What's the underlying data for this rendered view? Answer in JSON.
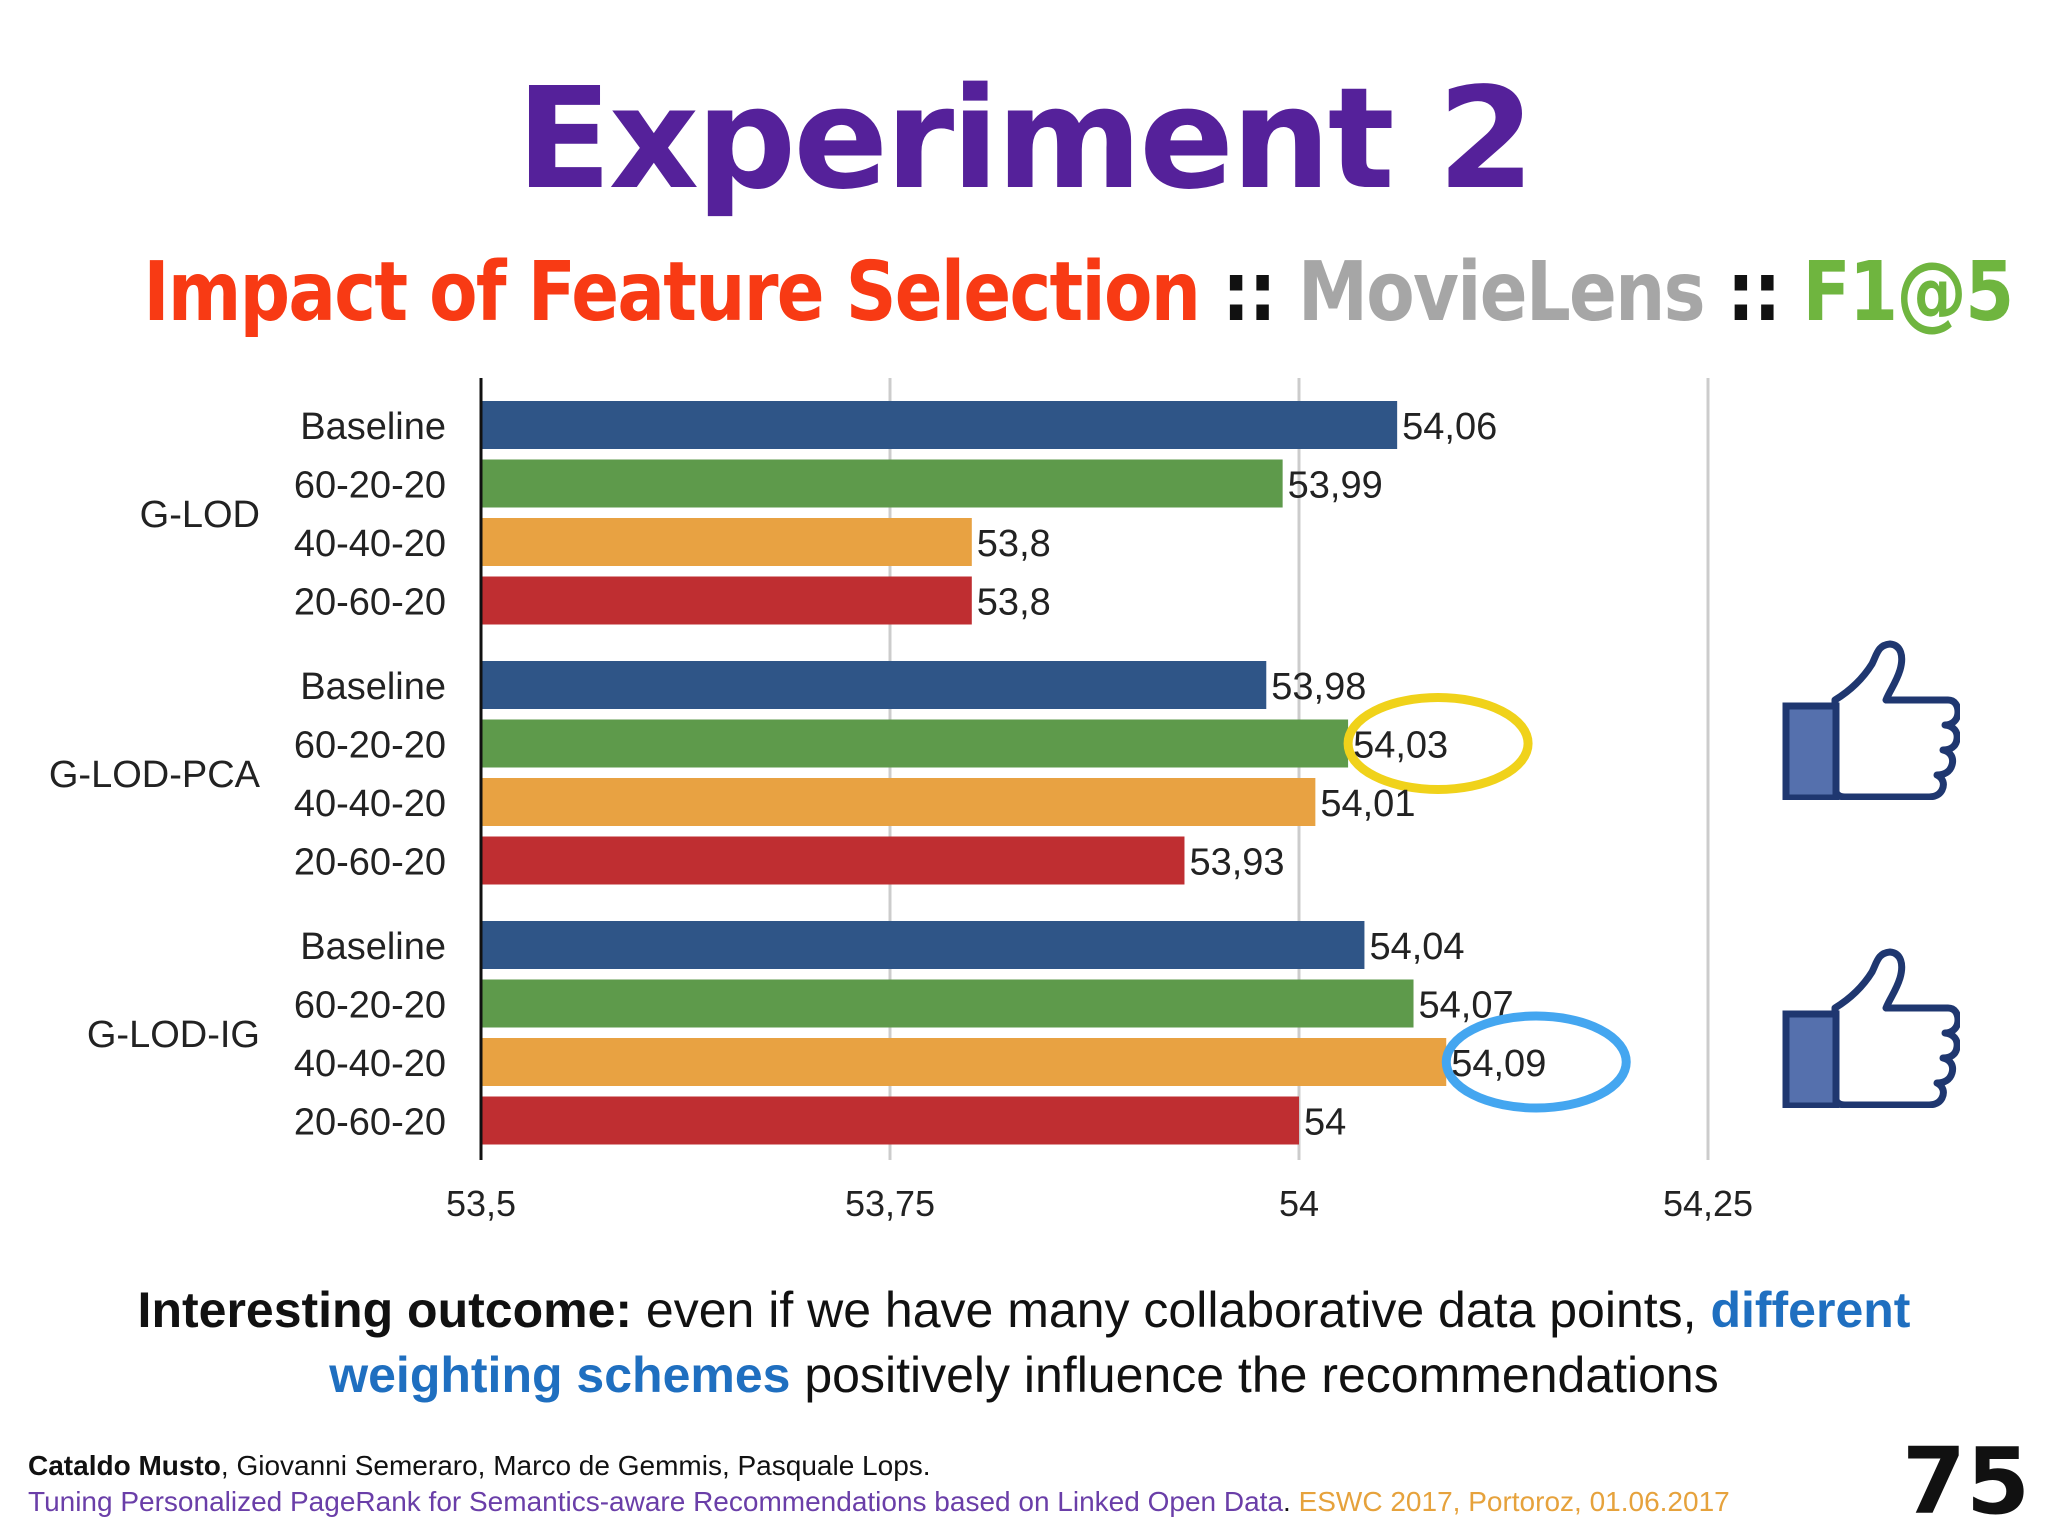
{
  "title": "Experiment 2",
  "subtitle": {
    "part1": "Impact of Feature Selection",
    "sep1": " :: ",
    "part2": "MovieLens",
    "sep2": " :: ",
    "part3": "F1@5"
  },
  "colors": {
    "title": "#55219a",
    "subtitle_part1": "#f83a14",
    "subtitle_sep": "#111111",
    "subtitle_part2": "#a6a6a6",
    "subtitle_part3": "#6fb53f",
    "highlight_yellow": "#f0d21a",
    "highlight_blue": "#44a6f0",
    "thumb_fill": "#5570ad",
    "thumb_stroke": "#1f3770"
  },
  "icons": [
    "thumbs-up-icon",
    "thumbs-up-icon"
  ],
  "chart_data": {
    "type": "bar",
    "orientation": "horizontal",
    "xlim": [
      53.5,
      54.25
    ],
    "x_ticks": [
      "53,5",
      "53,75",
      "54",
      "54,25"
    ],
    "x_tick_values": [
      53.5,
      53.75,
      54,
      54.25
    ],
    "grid": true,
    "series_colors": {
      "Baseline": "#2f5587",
      "60-20-20": "#5e9a4b",
      "40-40-20": "#e8a242",
      "20-60-20": "#bf2e31"
    },
    "groups": [
      {
        "name": "G-LOD",
        "bars": [
          {
            "label": "Baseline",
            "value": 54.06,
            "display": "54,06"
          },
          {
            "label": "60-20-20",
            "value": 53.99,
            "display": "53,99"
          },
          {
            "label": "40-40-20",
            "value": 53.8,
            "display": "53,8"
          },
          {
            "label": "20-60-20",
            "value": 53.8,
            "display": "53,8"
          }
        ]
      },
      {
        "name": "G-LOD-PCA",
        "bars": [
          {
            "label": "Baseline",
            "value": 53.98,
            "display": "53,98"
          },
          {
            "label": "60-20-20",
            "value": 54.03,
            "display": "54,03",
            "highlight": "yellow"
          },
          {
            "label": "40-40-20",
            "value": 54.01,
            "display": "54,01"
          },
          {
            "label": "20-60-20",
            "value": 53.93,
            "display": "53,93"
          }
        ]
      },
      {
        "name": "G-LOD-IG",
        "bars": [
          {
            "label": "Baseline",
            "value": 54.04,
            "display": "54,04"
          },
          {
            "label": "60-20-20",
            "value": 54.07,
            "display": "54,07"
          },
          {
            "label": "40-40-20",
            "value": 54.09,
            "display": "54,09",
            "highlight": "blue"
          },
          {
            "label": "20-60-20",
            "value": 54,
            "display": "54"
          }
        ]
      }
    ]
  },
  "outcome": {
    "lead": "Interesting outcome:",
    "text1": " even if we have many collaborative data points, ",
    "emphasis": "different weighting schemes",
    "text2": " positively influence the recommendations"
  },
  "footer": {
    "first_author": "Cataldo Musto",
    "other_authors": ", Giovanni Semeraro, Marco de Gemmis, Pasquale Lops.",
    "paper_title": "Tuning Personalized PageRank for Semantics-aware Recommendations based on Linked Open Data",
    "dot": ". ",
    "venue": "ESWC 2017, Portoroz, 01.06.2017"
  },
  "slide_number": "75"
}
